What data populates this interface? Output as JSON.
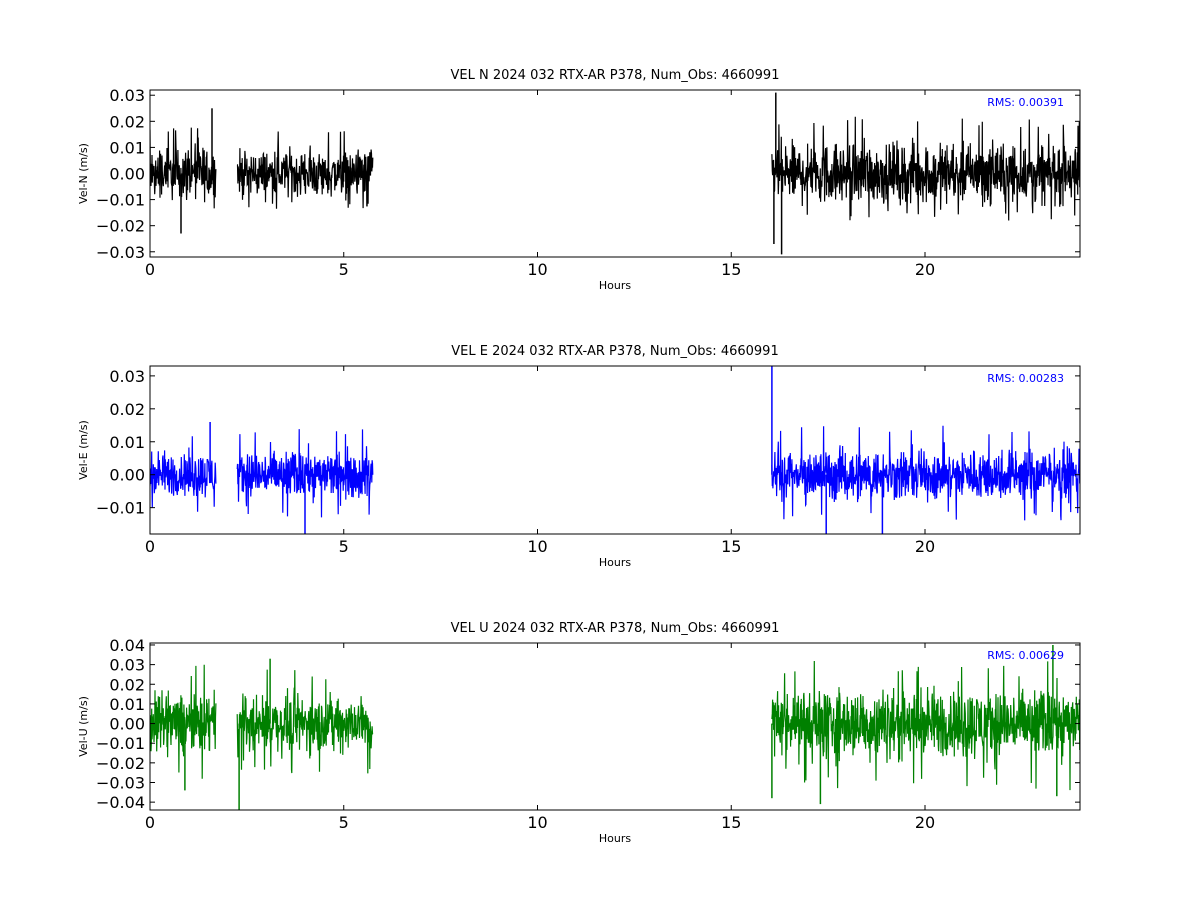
{
  "chart_data": [
    {
      "type": "line",
      "title": "VEL N 2024 032 RTX-AR  P378, Num_Obs: 4660991",
      "xlabel": "Hours",
      "ylabel": "Vel-N (m/s)",
      "xlim": [
        0,
        24
      ],
      "ylim": [
        -0.032,
        0.032
      ],
      "xticks": [
        "0",
        "5",
        "10",
        "15",
        "20"
      ],
      "yticks": [
        "0.03",
        "0.02",
        "0.01",
        "0.00",
        "−0.01",
        "−0.02",
        "−0.03"
      ],
      "color": "#000000",
      "annotation": "RMS:  0.00391",
      "annotation_color": "#0000ff",
      "series": [
        {
          "segments": [
            {
              "x_start": 0.0,
              "x_end": 1.7,
              "min": -0.02,
              "max": 0.018,
              "spikes": [
                [
                  0.8,
                  -0.023
                ],
                [
                  1.6,
                  0.025
                ]
              ]
            },
            {
              "x_start": 2.25,
              "x_end": 5.75,
              "min": -0.014,
              "max": 0.017,
              "spikes": []
            },
            {
              "x_start": 16.05,
              "x_end": 24.0,
              "min": -0.018,
              "max": 0.022,
              "spikes": [
                [
                  16.15,
                  0.031
                ],
                [
                  16.3,
                  -0.031
                ],
                [
                  16.1,
                  -0.027
                ]
              ]
            }
          ]
        }
      ]
    },
    {
      "type": "line",
      "title": "VEL E 2024 032 RTX-AR  P378, Num_Obs: 4660991",
      "xlabel": "Hours",
      "ylabel": "Vel-E (m/s)",
      "xlim": [
        0,
        24
      ],
      "ylim": [
        -0.018,
        0.033
      ],
      "xticks": [
        "0",
        "5",
        "10",
        "15",
        "20"
      ],
      "yticks": [
        "0.03",
        "0.02",
        "0.01",
        "0.00",
        "−0.01"
      ],
      "color": "#0000ff",
      "annotation": "RMS:  0.00283",
      "annotation_color": "#0000ff",
      "series": [
        {
          "segments": [
            {
              "x_start": 0.0,
              "x_end": 1.7,
              "min": -0.012,
              "max": 0.013,
              "spikes": [
                [
                  1.55,
                  0.016
                ]
              ]
            },
            {
              "x_start": 2.25,
              "x_end": 5.75,
              "min": -0.013,
              "max": 0.014,
              "spikes": [
                [
                  4.0,
                  -0.018
                ]
              ]
            },
            {
              "x_start": 16.05,
              "x_end": 24.0,
              "min": -0.014,
              "max": 0.015,
              "spikes": [
                [
                  16.05,
                  0.033
                ],
                [
                  17.45,
                  -0.018
                ],
                [
                  18.9,
                  -0.018
                ]
              ]
            }
          ]
        }
      ]
    },
    {
      "type": "line",
      "title": "VEL U 2024 032 RTX-AR  P378, Num_Obs: 4660991",
      "xlabel": "Hours",
      "ylabel": "Vel-U (m/s)",
      "xlim": [
        0,
        24
      ],
      "ylim": [
        -0.044,
        0.041
      ],
      "xticks": [
        "0",
        "5",
        "10",
        "15",
        "20"
      ],
      "yticks": [
        "0.04",
        "0.03",
        "0.02",
        "0.01",
        "0.00",
        "−0.01",
        "−0.02",
        "−0.03",
        "−0.04"
      ],
      "color": "#008000",
      "annotation": "RMS:  0.00629",
      "annotation_color": "#0000ff",
      "series": [
        {
          "segments": [
            {
              "x_start": 0.0,
              "x_end": 1.7,
              "min": -0.03,
              "max": 0.03,
              "spikes": [
                [
                  0.9,
                  -0.034
                ]
              ]
            },
            {
              "x_start": 2.25,
              "x_end": 5.75,
              "min": -0.026,
              "max": 0.028,
              "spikes": [
                [
                  2.3,
                  -0.044
                ],
                [
                  3.1,
                  0.033
                ]
              ]
            },
            {
              "x_start": 16.05,
              "x_end": 24.0,
              "min": -0.034,
              "max": 0.032,
              "spikes": [
                [
                  16.05,
                  -0.038
                ],
                [
                  17.3,
                  -0.041
                ],
                [
                  23.3,
                  0.04
                ],
                [
                  23.4,
                  -0.037
                ]
              ]
            }
          ]
        }
      ]
    }
  ]
}
